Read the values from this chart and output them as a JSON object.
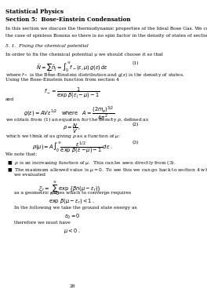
{
  "title_line1": "Statistical Physics",
  "title_line2": "Section 5:  Bose-Einstein Condensation",
  "intro_line1": "In this section we discuss the thermodynamic properties of the Ideal Bose Gas. We consider",
  "intro_line2": "the case of spinless Bosons so there is no spin factor in the density of states of section 4.",
  "section_header": "5. 1.  Fixing the chemical potential",
  "para1": "In order to fix the chemical potential μ we should choose it so that",
  "eq1_num": "(1)",
  "caption1a": "where $f_-$ is the Bose-Einstein distribution and $g(\\epsilon)$ is the density of states.",
  "caption1b": "Using the Bose-Einstein function from section 4",
  "and_text": "and",
  "caption3": "we obtain from (1) an equation for the density $\\rho$, defined as",
  "eq2_num": "(2)",
  "caption4": "which we think of as giving $\\rho$ as a function of $\\mu$:",
  "eq3_num": "(3)",
  "we_note": "We note that:",
  "bullet1": "■  $\\rho$ is an increasing function of $\\mu$.  This can be seen directly from (3).",
  "bullet2a": "■  The maximum allowed value is $\\mu = 0$.  To see this we can go back to section 4 where",
  "bullet2b": "we evaluated",
  "caption5": "as a geometric series which to converge requires",
  "caption6": "In the following we take the ground state energy as",
  "caption7": "therefore we must have",
  "page_num": "28",
  "bg_color": "#ffffff",
  "text_color": "#000000"
}
